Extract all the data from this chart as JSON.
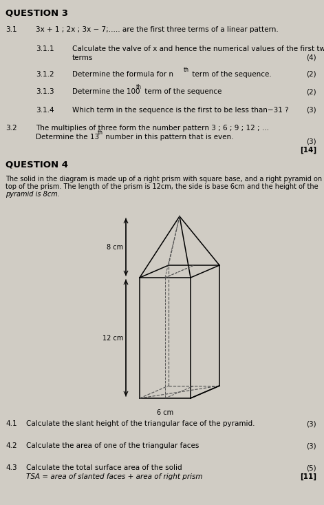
{
  "bg_color": "#d0ccc4",
  "title_q3": "QUESTION 3",
  "title_q4": "QUESTION 4",
  "q3_intro": "3x + 1 ; 2x ; 3x − 7;..... are the first three terms of a linear pattern.",
  "q3_label": "3.1",
  "q32_label": "3.2",
  "total_marks": "[14]",
  "dim_8cm": "8 cm",
  "dim_12cm": "12 cm",
  "dim_6cm": "6 cm",
  "fs_title": 9.0,
  "fs_body": 7.5,
  "fs_small": 7.0,
  "fs_super": 5.5
}
